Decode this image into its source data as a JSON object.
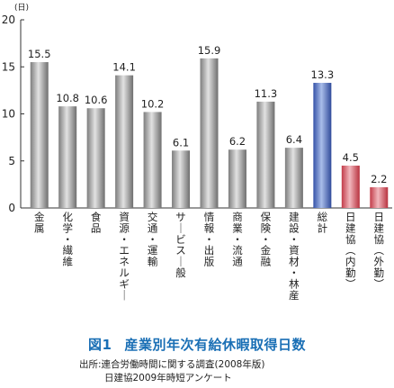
{
  "chart_data": {
    "type": "bar",
    "unit_label": "(日)",
    "ylim": [
      0,
      20
    ],
    "yticks": [
      "0",
      "5",
      "10",
      "15",
      "20"
    ],
    "categories": [
      "金属",
      "化学・繊維",
      "食品",
      "資源・エネルギー",
      "交通・運輸",
      "サービス一般",
      "情報・出版",
      "商業・流通",
      "保険・金融",
      "建設・資材・林産",
      "総計",
      "日建協(内勤)",
      "日建協(外勤)"
    ],
    "values": [
      15.5,
      10.8,
      10.6,
      14.1,
      10.2,
      6.1,
      15.9,
      6.2,
      11.3,
      6.4,
      13.3,
      4.5,
      2.2
    ],
    "value_labels": [
      "15.5",
      "10.8",
      "10.6",
      "14.1",
      "10.2",
      "6.1",
      "15.9",
      "6.2",
      "11.3",
      "6.4",
      "13.3",
      "4.5",
      "2.2"
    ],
    "bar_colors": [
      "gray",
      "gray",
      "gray",
      "gray",
      "gray",
      "gray",
      "gray",
      "gray",
      "gray",
      "gray",
      "blue",
      "red",
      "red"
    ],
    "colors": {
      "gray": "#8c8c8c",
      "blue": "#3f63b8",
      "red": "#cc4a56"
    },
    "grid": false
  },
  "caption": {
    "figure_no": "図1",
    "title": "産業別年次有給休暇取得日数"
  },
  "source": {
    "line1": "出所:連合労働時間に関する調査(2008年版)",
    "line2": "日建協2009年時短アンケート"
  }
}
